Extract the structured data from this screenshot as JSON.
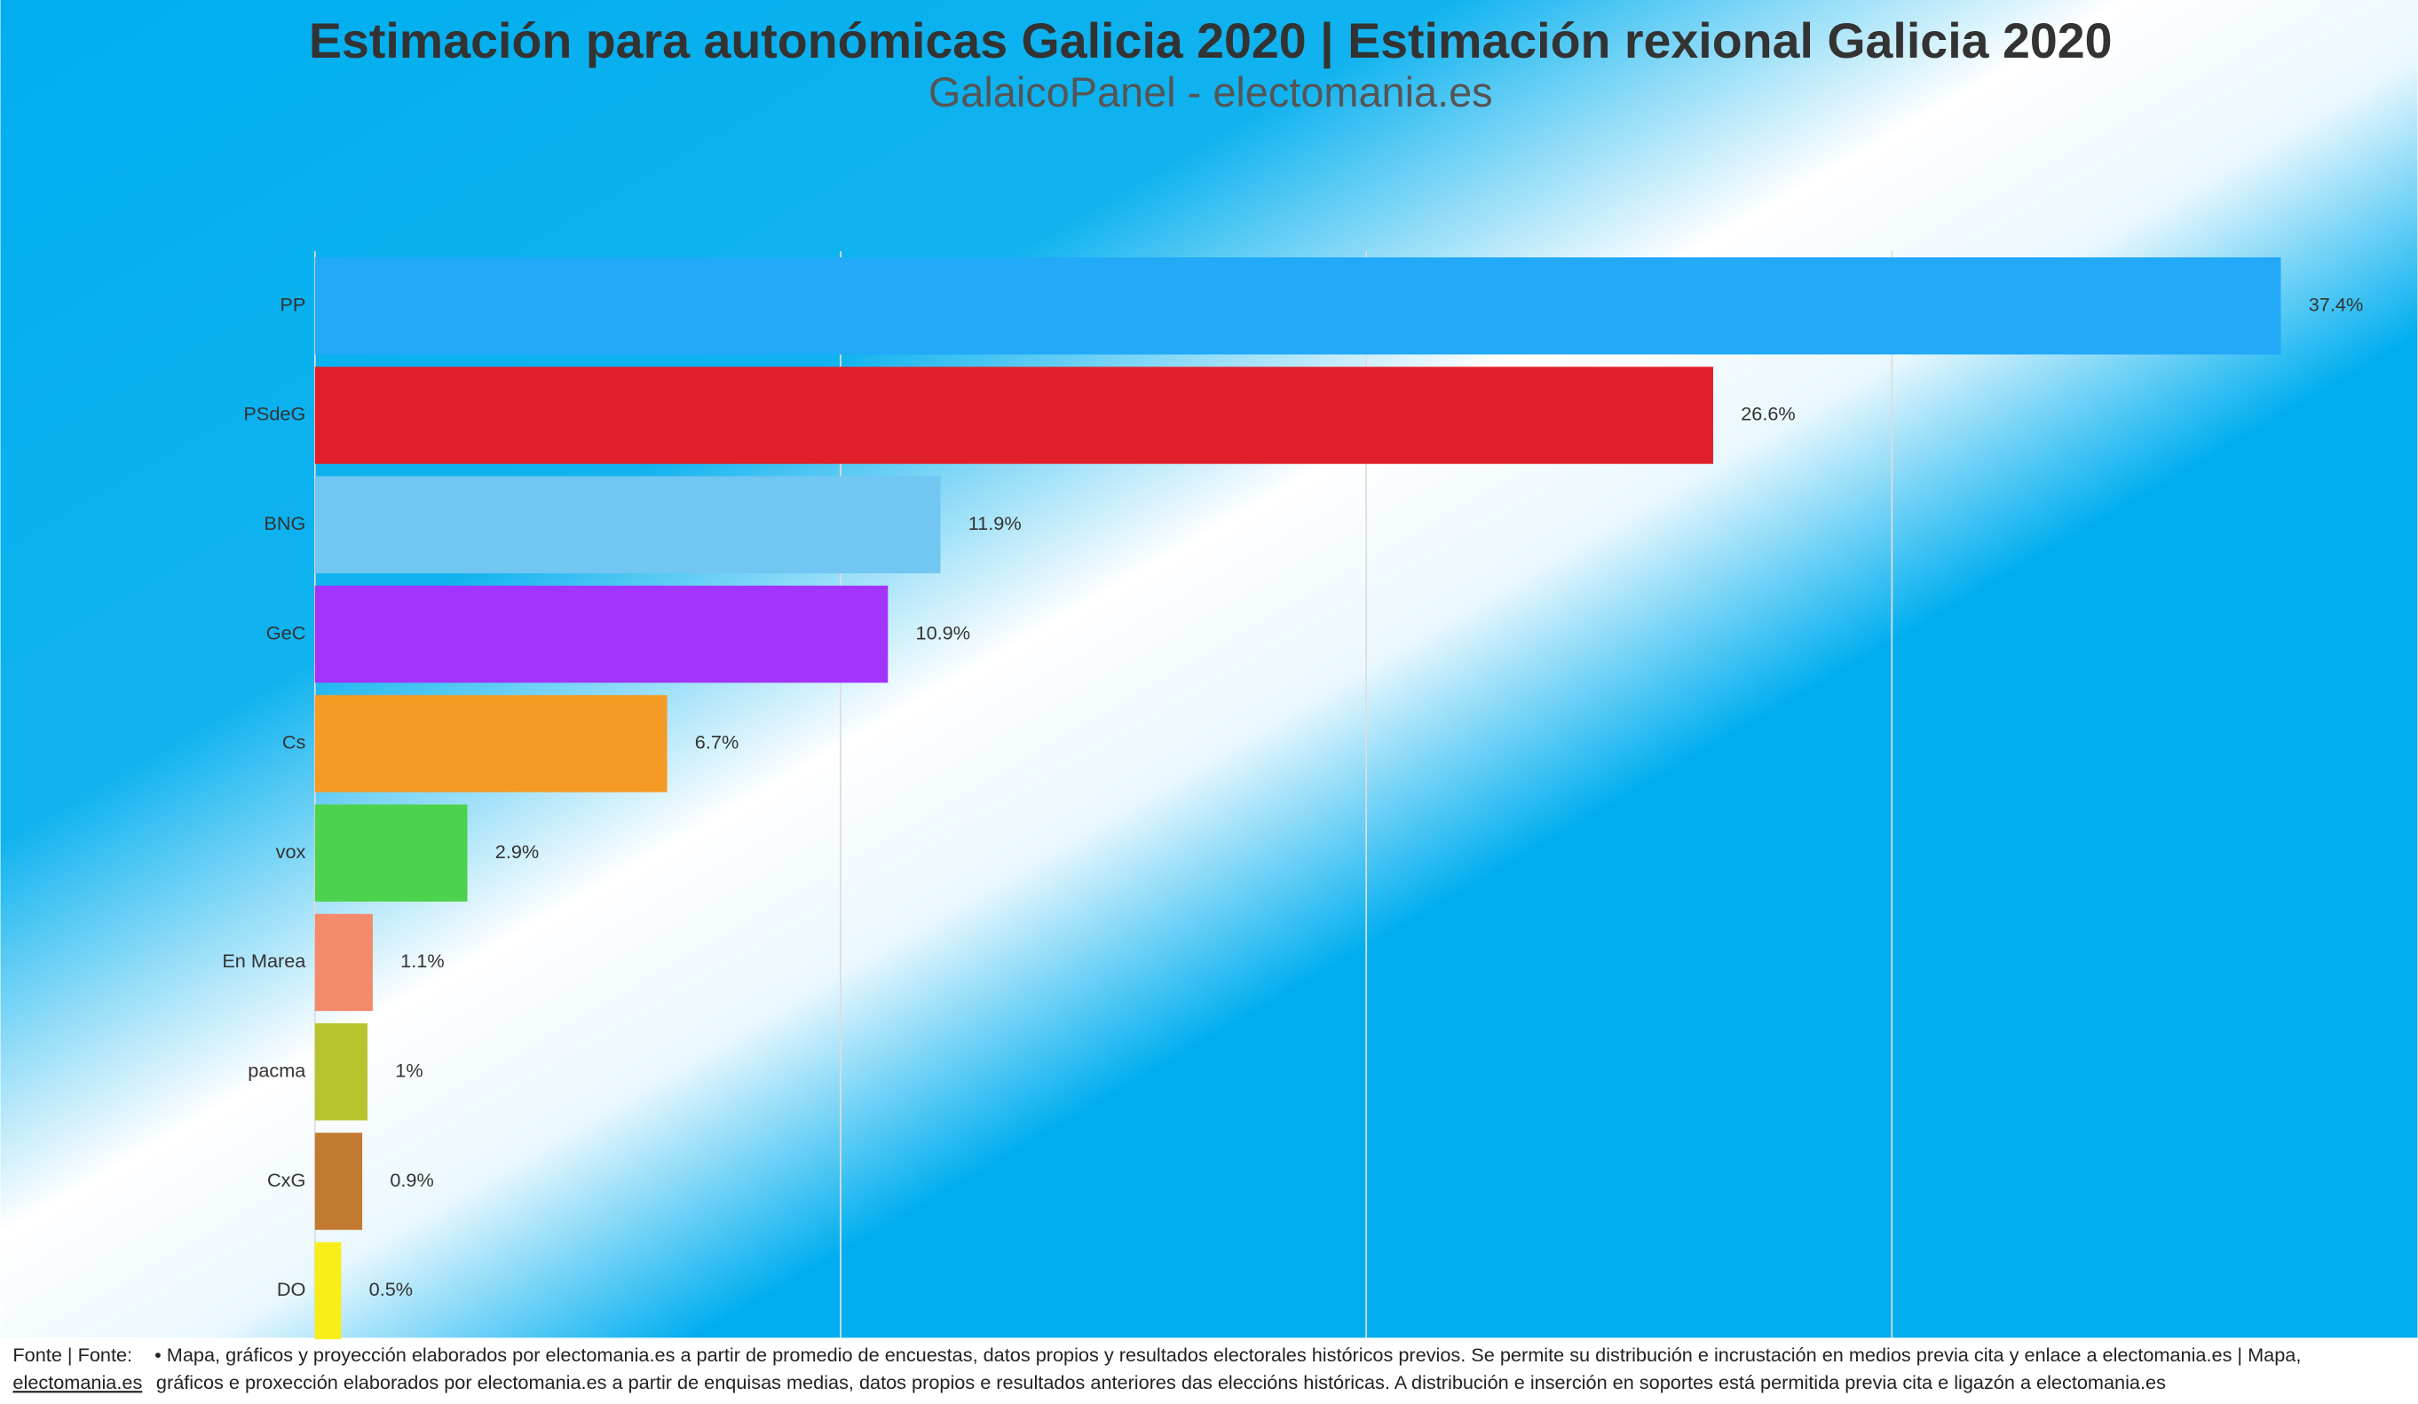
{
  "chart_data": {
    "type": "hbar",
    "title": "Estimación para autonómicas Galicia 2020 | Estimación rexional Galicia 2020",
    "subtitle": "GalaicoPanel - electomania.es",
    "categories": [
      "PP",
      "PSdeG",
      "BNG",
      "GeC",
      "Cs",
      "vox",
      "En Marea",
      "pacma",
      "CxG",
      "DO"
    ],
    "values": [
      37.4,
      26.6,
      11.9,
      10.9,
      6.7,
      2.9,
      1.1,
      1,
      0.9,
      0.5
    ],
    "value_labels": [
      "37.4%",
      "26.6%",
      "11.9%",
      "10.9%",
      "6.7%",
      "2.9%",
      "1.1%",
      "1%",
      "0.9%",
      "0.5%"
    ],
    "colors": [
      "#22a9f7",
      "#e01f2a",
      "#72c6f2",
      "#a234fb",
      "#f59a25",
      "#4cd24c",
      "#f48a6c",
      "#b8c42e",
      "#c27a30",
      "#f7ee1a"
    ],
    "xlim": [
      0,
      40
    ],
    "xticks": [
      0,
      10,
      20,
      30
    ],
    "grid": true,
    "source_label": "Fonte | Fonte:",
    "source_link": "electomania.es",
    "source_lines": [
      "• Mapa, gráficos y proyección elaborados por electomania.es a partir de promedio de encuestas, datos propios y resultados electorales históricos previos. Se permite su distribución e incrustación en medios previa cita y enlace a electomania.es | Mapa,",
      "gráficos e proxección elaborados por electomania.es a partir de enquisas medias, datos propios e resultados anteriores das eleccións históricas. A distribución e inserción en soportes está permitida previa cita e ligazón a electomania.es"
    ]
  }
}
